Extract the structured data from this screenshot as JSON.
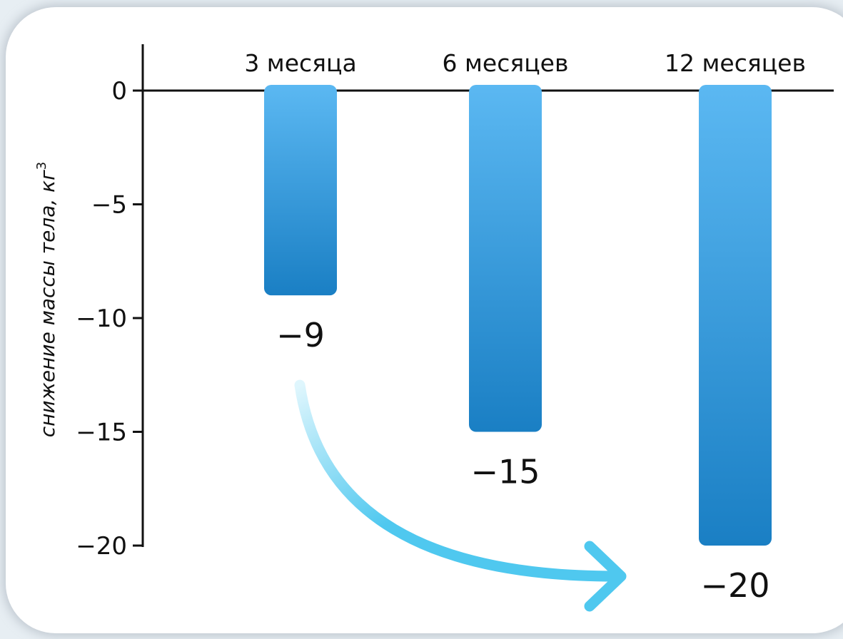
{
  "chart_data": {
    "type": "bar",
    "title": "",
    "xlabel": "",
    "ylabel": "снижение массы тела, кг",
    "ylabel_superscript": "3",
    "categories": [
      "3 месяца",
      "6 месяцев",
      "12 месяцев"
    ],
    "values": [
      -9,
      -15,
      -20
    ],
    "value_labels": [
      "−9",
      "−15",
      "−20"
    ],
    "ylim": [
      -20,
      0
    ],
    "yticks": [
      0,
      -5,
      -10,
      -15,
      -20
    ],
    "ytick_labels": [
      "0",
      "−5",
      "−10",
      "−15",
      "−20"
    ],
    "category_axis_position": "top",
    "grid": false,
    "legend": "none",
    "annotation": "arrow from −9 toward −20",
    "colors": {
      "bar_light": "#5bb8f2",
      "bar_dark": "#1a7fc4",
      "arrow": "#4fc8ef",
      "axis": "#111111"
    }
  }
}
